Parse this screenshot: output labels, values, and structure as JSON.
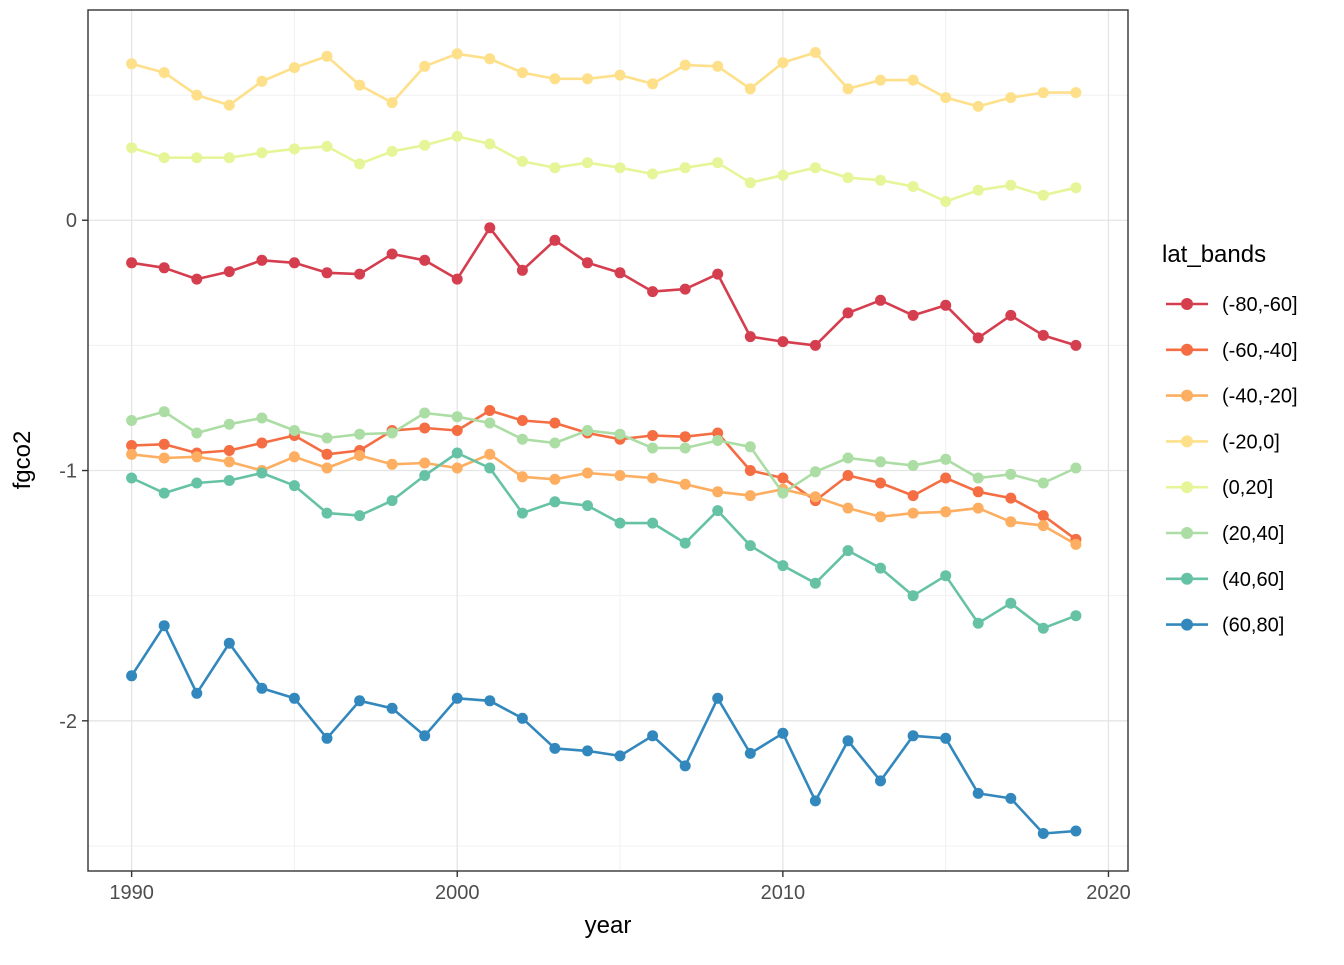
{
  "chart_data": {
    "type": "line",
    "title": "",
    "xlabel": "year",
    "ylabel": "fgco2",
    "legend_title": "lat_bands",
    "legend_position": "right",
    "background": "#ffffff",
    "panel_border_color": "#333333",
    "grid_major_color": "#e5e5e5",
    "grid_minor_color": "#f0f0f0",
    "tick_color": "#333333",
    "tick_label_color": "#4d4d4d",
    "xlim": [
      1988.66,
      2020.6
    ],
    "ylim": [
      -2.6,
      0.84
    ],
    "x_major_ticks": [
      1990,
      2000,
      2010,
      2020
    ],
    "x_minor_ticks": [
      1995,
      2005,
      2015
    ],
    "y_major_ticks": [
      0,
      -1,
      -2
    ],
    "y_minor_ticks": [
      0.5,
      -0.5,
      -1.5,
      -2.5
    ],
    "x": [
      1990,
      1991,
      1992,
      1993,
      1994,
      1995,
      1996,
      1997,
      1998,
      1999,
      2000,
      2001,
      2002,
      2003,
      2004,
      2005,
      2006,
      2007,
      2008,
      2009,
      2010,
      2011,
      2012,
      2013,
      2014,
      2015,
      2016,
      2017,
      2018,
      2019
    ],
    "series": [
      {
        "name": "(-80,-60]",
        "color": "#d53e4f",
        "values": [
          -0.17,
          -0.19,
          -0.235,
          -0.205,
          -0.16,
          -0.17,
          -0.21,
          -0.215,
          -0.135,
          -0.16,
          -0.235,
          -0.03,
          -0.2,
          -0.08,
          -0.17,
          -0.21,
          -0.285,
          -0.275,
          -0.215,
          -0.465,
          -0.485,
          -0.5,
          -0.37,
          -0.32,
          -0.38,
          -0.34,
          -0.47,
          -0.38,
          -0.46,
          -0.5
        ]
      },
      {
        "name": "(-60,-40]",
        "color": "#f46d43",
        "values": [
          -0.9,
          -0.895,
          -0.93,
          -0.92,
          -0.89,
          -0.86,
          -0.935,
          -0.92,
          -0.84,
          -0.83,
          -0.84,
          -0.76,
          -0.8,
          -0.81,
          -0.85,
          -0.875,
          -0.86,
          -0.865,
          -0.85,
          -1.0,
          -1.03,
          -1.12,
          -1.02,
          -1.05,
          -1.1,
          -1.03,
          -1.085,
          -1.11,
          -1.18,
          -1.275
        ]
      },
      {
        "name": "(-40,-20]",
        "color": "#fdae61",
        "values": [
          -0.935,
          -0.95,
          -0.945,
          -0.965,
          -1.0,
          -0.945,
          -0.99,
          -0.94,
          -0.975,
          -0.97,
          -0.99,
          -0.935,
          -1.025,
          -1.035,
          -1.01,
          -1.02,
          -1.03,
          -1.055,
          -1.085,
          -1.1,
          -1.075,
          -1.105,
          -1.15,
          -1.185,
          -1.17,
          -1.165,
          -1.15,
          -1.205,
          -1.22,
          -1.295
        ]
      },
      {
        "name": "(-20,0]",
        "color": "#fee08b",
        "values": [
          0.625,
          0.59,
          0.5,
          0.46,
          0.555,
          0.61,
          0.655,
          0.54,
          0.47,
          0.615,
          0.665,
          0.645,
          0.59,
          0.565,
          0.565,
          0.58,
          0.545,
          0.62,
          0.615,
          0.525,
          0.63,
          0.67,
          0.525,
          0.56,
          0.56,
          0.49,
          0.455,
          0.49,
          0.51,
          0.51
        ]
      },
      {
        "name": "(0,20]",
        "color": "#e6f598",
        "values": [
          0.29,
          0.25,
          0.25,
          0.25,
          0.27,
          0.285,
          0.295,
          0.225,
          0.275,
          0.3,
          0.335,
          0.305,
          0.235,
          0.21,
          0.23,
          0.21,
          0.185,
          0.21,
          0.23,
          0.15,
          0.18,
          0.21,
          0.17,
          0.16,
          0.135,
          0.075,
          0.12,
          0.14,
          0.1,
          0.13
        ]
      },
      {
        "name": "(20,40]",
        "color": "#abdda4",
        "values": [
          -0.8,
          -0.765,
          -0.85,
          -0.815,
          -0.79,
          -0.84,
          -0.87,
          -0.855,
          -0.85,
          -0.77,
          -0.785,
          -0.81,
          -0.875,
          -0.89,
          -0.84,
          -0.855,
          -0.91,
          -0.91,
          -0.88,
          -0.905,
          -1.09,
          -1.005,
          -0.95,
          -0.965,
          -0.98,
          -0.955,
          -1.03,
          -1.015,
          -1.05,
          -0.99
        ]
      },
      {
        "name": "(40,60]",
        "color": "#66c2a5",
        "values": [
          -1.03,
          -1.09,
          -1.05,
          -1.04,
          -1.01,
          -1.06,
          -1.17,
          -1.18,
          -1.12,
          -1.02,
          -0.93,
          -0.99,
          -1.17,
          -1.125,
          -1.14,
          -1.21,
          -1.21,
          -1.29,
          -1.16,
          -1.3,
          -1.38,
          -1.45,
          -1.32,
          -1.39,
          -1.5,
          -1.42,
          -1.61,
          -1.53,
          -1.63,
          -1.58
        ]
      },
      {
        "name": "(60,80]",
        "color": "#3288bd",
        "values": [
          -1.82,
          -1.62,
          -1.89,
          -1.69,
          -1.87,
          -1.91,
          -2.07,
          -1.92,
          -1.95,
          -2.06,
          -1.91,
          -1.92,
          -1.99,
          -2.11,
          -2.12,
          -2.14,
          -2.06,
          -2.18,
          -1.91,
          -2.13,
          -2.05,
          -2.32,
          -2.08,
          -2.24,
          -2.06,
          -2.07,
          -2.29,
          -2.31,
          -2.45,
          -2.44
        ]
      }
    ]
  }
}
